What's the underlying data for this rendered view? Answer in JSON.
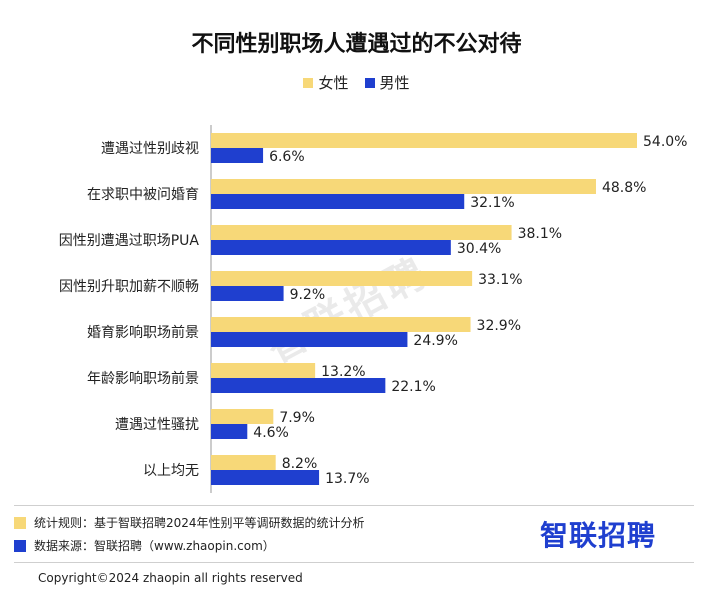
{
  "chart_data": {
    "type": "bar",
    "orientation": "horizontal",
    "title": "不同性别职场人遭遇过的不公对待",
    "categories": [
      "遭遇过性别歧视",
      "在求职中被问婚育",
      "因性别遭遇过职场PUA",
      "因性别升职加薪不顺畅",
      "婚育影响职场前景",
      "年龄影响职场前景",
      "遭遇过性骚扰",
      "以上均无"
    ],
    "series": [
      {
        "name": "女性",
        "color": "#f7d878",
        "values": [
          54.0,
          48.8,
          38.1,
          33.1,
          32.9,
          13.2,
          7.9,
          8.2
        ],
        "labels": [
          "54.0%",
          "48.8%",
          "38.1%",
          "33.1%",
          "32.9%",
          "13.2%",
          "7.9%",
          "8.2%"
        ]
      },
      {
        "name": "男性",
        "color": "#1f3fcf",
        "values": [
          6.6,
          32.1,
          30.4,
          9.2,
          24.9,
          22.1,
          4.6,
          13.7
        ],
        "labels": [
          "6.6%",
          "32.1%",
          "30.4%",
          "9.2%",
          "24.9%",
          "22.1%",
          "4.6%",
          "13.7%"
        ]
      }
    ],
    "xlim": [
      0,
      54
    ],
    "legend_position": "top-center",
    "grid": false
  },
  "watermark": "智联招聘",
  "notes": [
    {
      "color": "#f7d878",
      "text": "统计规则：基于智联招聘2024年性别平等调研数据的统计分析"
    },
    {
      "color": "#1f3fcf",
      "text": "数据来源：智联招聘（www.zhaopin.com）"
    }
  ],
  "brand": "智联招聘",
  "copyright": "Copyright©2024 zhaopin all rights reserved"
}
